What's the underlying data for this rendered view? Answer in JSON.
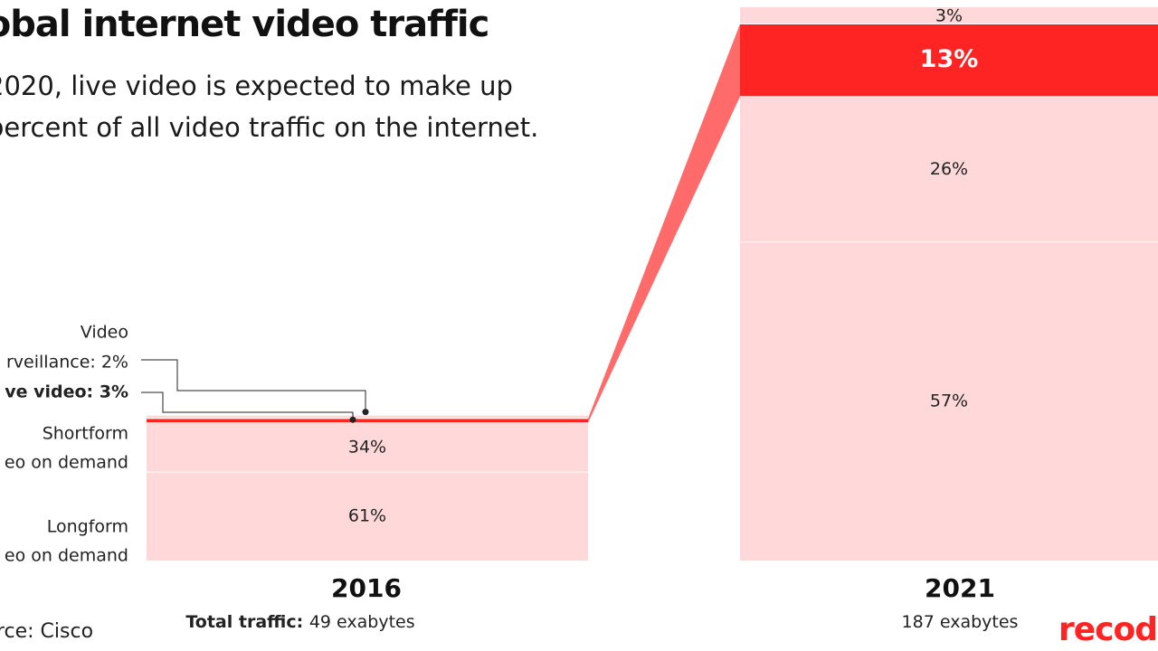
{
  "chart_data": {
    "type": "bar",
    "title": "lobal internet video traffic",
    "subtitle": "2020, live video is expected to make up percent of all video traffic on the internet.",
    "source": "urce: Cisco",
    "logo": "recod",
    "highlight_color": "#ff2424",
    "base_color": "#ffd9d9",
    "connector_color": "#ff6b6b",
    "series_order": [
      "longform_vod",
      "shortform_vod",
      "live_video",
      "video_surveillance"
    ],
    "bars": [
      {
        "year": "2016",
        "total_label": "Total traffic:",
        "total_value": "49 exabytes",
        "total_exabytes": 49,
        "segments": [
          {
            "key": "longform_vod",
            "label_lines": [
              "Longform",
              "eo on demand"
            ],
            "value": 61,
            "value_label": "61%"
          },
          {
            "key": "shortform_vod",
            "label_lines": [
              "Shortform",
              "eo on demand"
            ],
            "value": 34,
            "value_label": "34%"
          },
          {
            "key": "live_video",
            "label_lines": [
              "ve video: 3%"
            ],
            "value": 3,
            "value_label": "3%"
          },
          {
            "key": "video_surveillance",
            "label_lines": [
              "Video",
              "rveillance: 2%"
            ],
            "value": 2,
            "value_label": "2%"
          }
        ]
      },
      {
        "year": "2021",
        "total_label": "",
        "total_value": "187 exabytes",
        "total_exabytes": 187,
        "segments": [
          {
            "key": "longform_vod",
            "value": 57,
            "value_label": "57%"
          },
          {
            "key": "shortform_vod",
            "value": 26,
            "value_label": "26%"
          },
          {
            "key": "live_video",
            "value": 13,
            "value_label": "13%"
          },
          {
            "key": "video_surveillance",
            "value": 3,
            "value_label": "3%"
          }
        ]
      }
    ]
  }
}
